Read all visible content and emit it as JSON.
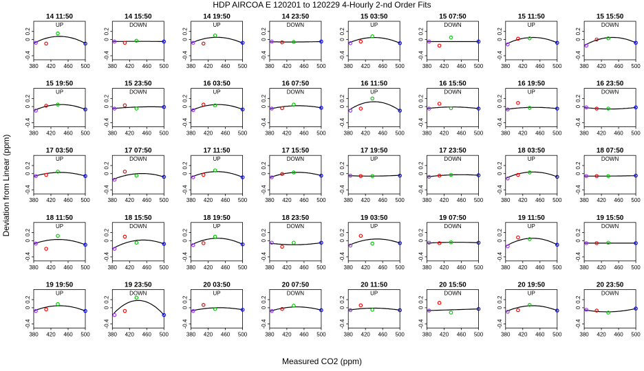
{
  "figure": {
    "title": "HDP   AIRCOA E   120201 to 120229   4-Hourly 2-nd Order Fits",
    "xlabel": "Measured CO2 (ppm)",
    "ylabel": "Deviation from Linear (ppm)"
  },
  "chart_data": {
    "type": "scatter",
    "rows": 5,
    "cols": 8,
    "xlim": [
      380,
      500
    ],
    "ylim": [
      -0.5,
      0.45
    ],
    "xticks": [
      380,
      420,
      460,
      500
    ],
    "yticks": [
      -0.4,
      0,
      0.2
    ],
    "ytick_labels": [
      "-0.4",
      "0",
      "0.2"
    ],
    "point_x": [
      385,
      409,
      436,
      500
    ],
    "colors": [
      "#9b30ff",
      "#ff0000",
      "#00cc00",
      "#0000ff"
    ],
    "curve_color": "#000000",
    "panels": [
      {
        "title": "14 11:50",
        "dir": "UP",
        "y": [
          -0.08,
          -0.1,
          0.15,
          -0.1
        ],
        "curve": [
          -0.095,
          0.078,
          -0.095
        ]
      },
      {
        "title": "14 15:50",
        "dir": "DOWN",
        "y": [
          -0.05,
          -0.08,
          -0.03,
          -0.05
        ],
        "curve": [
          -0.05,
          -0.045,
          -0.05
        ]
      },
      {
        "title": "14 19:50",
        "dir": "UP",
        "y": [
          -0.08,
          -0.1,
          0.1,
          -0.08
        ],
        "curve": [
          -0.09,
          0.055,
          -0.09
        ]
      },
      {
        "title": "14 23:50",
        "dir": "DOWN",
        "y": [
          -0.05,
          -0.07,
          -0.06,
          -0.05
        ],
        "curve": [
          -0.055,
          -0.06,
          -0.05
        ]
      },
      {
        "title": "15 03:50",
        "dir": "UP",
        "y": [
          -0.09,
          -0.05,
          0.08,
          -0.09
        ],
        "curve": [
          -0.09,
          0.05,
          -0.09
        ]
      },
      {
        "title": "15 07:50",
        "dir": "DOWN",
        "y": [
          -0.05,
          -0.15,
          0.05,
          -0.05
        ],
        "curve": [
          -0.05,
          -0.05,
          -0.05
        ]
      },
      {
        "title": "15 11:50",
        "dir": "UP",
        "y": [
          -0.12,
          0.02,
          0.03,
          -0.08
        ],
        "curve": [
          -0.12,
          0.05,
          -0.08
        ]
      },
      {
        "title": "15 15:50",
        "dir": "DOWN",
        "y": [
          -0.15,
          0.0,
          0.03,
          -0.08
        ],
        "curve": [
          -0.15,
          0.05,
          -0.08
        ]
      },
      {
        "title": "15 19:50",
        "dir": "UP",
        "y": [
          -0.1,
          0.02,
          0.05,
          -0.07
        ],
        "curve": [
          -0.1,
          0.05,
          -0.07
        ]
      },
      {
        "title": "15 23:50",
        "dir": "DOWN",
        "y": [
          -0.05,
          0.03,
          -0.05,
          -0.01
        ],
        "curve": [
          -0.05,
          -0.01,
          -0.01
        ]
      },
      {
        "title": "16 03:50",
        "dir": "UP",
        "y": [
          -0.09,
          0.05,
          0.03,
          -0.07
        ],
        "curve": [
          -0.1,
          0.05,
          -0.07
        ]
      },
      {
        "title": "16 07:50",
        "dir": "DOWN",
        "y": [
          -0.05,
          -0.04,
          0.05,
          -0.03
        ],
        "curve": [
          -0.06,
          0.02,
          -0.03
        ]
      },
      {
        "title": "16 11:50",
        "dir": "UP",
        "y": [
          -0.1,
          -0.05,
          0.2,
          -0.1
        ],
        "curve": [
          -0.1,
          0.12,
          -0.1
        ]
      },
      {
        "title": "16 15:50",
        "dir": "DOWN",
        "y": [
          -0.05,
          0.07,
          -0.04,
          -0.05
        ],
        "curve": [
          -0.05,
          -0.01,
          -0.05
        ]
      },
      {
        "title": "16 19:50",
        "dir": "UP",
        "y": [
          -0.07,
          0.09,
          -0.03,
          -0.05
        ],
        "curve": [
          -0.07,
          -0.02,
          -0.05
        ]
      },
      {
        "title": "16 23:50",
        "dir": "DOWN",
        "y": [
          -0.02,
          -0.05,
          -0.05,
          -0.02
        ],
        "curve": [
          -0.02,
          -0.06,
          -0.02
        ]
      },
      {
        "title": "17 03:50",
        "dir": "UP",
        "y": [
          -0.06,
          -0.03,
          0.05,
          -0.06
        ],
        "curve": [
          -0.07,
          0.03,
          -0.06
        ]
      },
      {
        "title": "17 07:50",
        "dir": "DOWN",
        "y": [
          -0.15,
          0.05,
          -0.05,
          -0.08
        ],
        "curve": [
          -0.15,
          0.0,
          -0.08
        ]
      },
      {
        "title": "17 11:50",
        "dir": "UP",
        "y": [
          -0.09,
          -0.03,
          0.08,
          -0.09
        ],
        "curve": [
          -0.09,
          0.05,
          -0.09
        ]
      },
      {
        "title": "17 15:50",
        "dir": "DOWN",
        "y": [
          -0.09,
          -0.01,
          0.03,
          -0.05
        ],
        "curve": [
          -0.1,
          0.03,
          -0.05
        ]
      },
      {
        "title": "17 19:50",
        "dir": "UP",
        "y": [
          -0.05,
          -0.06,
          -0.06,
          -0.05
        ],
        "curve": [
          -0.05,
          -0.06,
          -0.04
        ]
      },
      {
        "title": "17 23:50",
        "dir": "DOWN",
        "y": [
          -0.08,
          -0.05,
          -0.03,
          -0.04
        ],
        "curve": [
          -0.08,
          -0.03,
          -0.04
        ]
      },
      {
        "title": "18 03:50",
        "dir": "UP",
        "y": [
          -0.12,
          -0.03,
          0.03,
          -0.08
        ],
        "curve": [
          -0.12,
          0.04,
          -0.08
        ]
      },
      {
        "title": "18 07:50",
        "dir": "DOWN",
        "y": [
          -0.06,
          -0.06,
          -0.06,
          -0.05
        ],
        "curve": [
          -0.06,
          -0.06,
          -0.05
        ]
      },
      {
        "title": "18 11:50",
        "dir": "UP",
        "y": [
          -0.07,
          -0.2,
          0.12,
          -0.1
        ],
        "curve": [
          -0.08,
          0.03,
          -0.1
        ]
      },
      {
        "title": "18 15:50",
        "dir": "DOWN",
        "y": [
          -0.2,
          0.1,
          -0.05,
          -0.08
        ],
        "curve": [
          -0.2,
          0.01,
          -0.08
        ]
      },
      {
        "title": "18 19:50",
        "dir": "UP",
        "y": [
          -0.11,
          -0.06,
          0.1,
          -0.09
        ],
        "curve": [
          -0.11,
          0.06,
          -0.09
        ]
      },
      {
        "title": "18 23:50",
        "dir": "DOWN",
        "y": [
          -0.05,
          -0.15,
          -0.05,
          -0.05
        ],
        "curve": [
          -0.06,
          -0.1,
          -0.05
        ]
      },
      {
        "title": "19 03:50",
        "dir": "UP",
        "y": [
          -0.12,
          0.12,
          -0.07,
          -0.06
        ],
        "curve": [
          -0.12,
          0.04,
          -0.06
        ]
      },
      {
        "title": "19 07:50",
        "dir": "DOWN",
        "y": [
          -0.05,
          -0.06,
          -0.04,
          -0.05
        ],
        "curve": [
          -0.06,
          -0.04,
          -0.05
        ]
      },
      {
        "title": "19 11:50",
        "dir": "UP",
        "y": [
          -0.14,
          0.08,
          0.04,
          -0.1
        ],
        "curve": [
          -0.14,
          0.06,
          -0.1
        ]
      },
      {
        "title": "19 15:50",
        "dir": "DOWN",
        "y": [
          -0.06,
          -0.06,
          -0.05,
          -0.06
        ],
        "curve": [
          -0.06,
          -0.06,
          -0.06
        ]
      },
      {
        "title": "19 19:50",
        "dir": "UP",
        "y": [
          -0.08,
          -0.04,
          0.09,
          -0.08
        ],
        "curve": [
          -0.08,
          0.05,
          -0.08
        ]
      },
      {
        "title": "19 23:50",
        "dir": "DOWN",
        "y": [
          -0.18,
          -0.08,
          0.25,
          -0.18
        ],
        "curve": [
          -0.18,
          0.18,
          -0.18
        ]
      },
      {
        "title": "20 03:50",
        "dir": "UP",
        "y": [
          -0.08,
          0.07,
          -0.03,
          -0.05
        ],
        "curve": [
          -0.08,
          0.0,
          -0.05
        ]
      },
      {
        "title": "20 07:50",
        "dir": "DOWN",
        "y": [
          -0.08,
          -0.03,
          0.05,
          -0.06
        ],
        "curve": [
          -0.09,
          0.02,
          -0.06
        ]
      },
      {
        "title": "20 11:50",
        "dir": "UP",
        "y": [
          -0.06,
          0.06,
          -0.05,
          -0.06
        ],
        "curve": [
          -0.06,
          -0.01,
          -0.06
        ]
      },
      {
        "title": "20 15:50",
        "dir": "DOWN",
        "y": [
          -0.07,
          0.12,
          -0.12,
          -0.03
        ],
        "curve": [
          -0.07,
          -0.05,
          -0.03
        ]
      },
      {
        "title": "20 19:50",
        "dir": "UP",
        "y": [
          -0.1,
          -0.06,
          0.07,
          -0.07
        ],
        "curve": [
          -0.1,
          0.05,
          -0.07
        ]
      },
      {
        "title": "20 23:50",
        "dir": "DOWN",
        "y": [
          -0.05,
          -0.07,
          -0.12,
          -0.02
        ],
        "curve": [
          -0.05,
          -0.1,
          -0.02
        ]
      }
    ]
  }
}
